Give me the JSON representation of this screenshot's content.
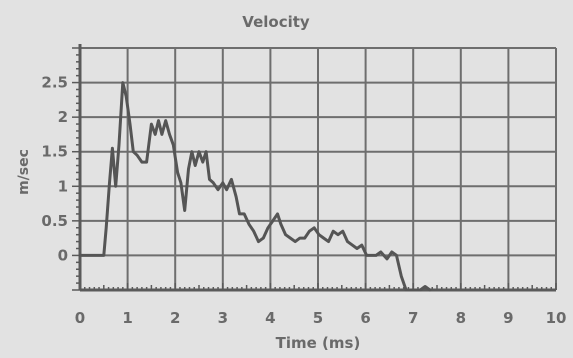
{
  "chart_data": {
    "type": "line",
    "title": "Velocity",
    "xlabel": "Time (ms)",
    "ylabel": "m/sec",
    "xlim": [
      0,
      10
    ],
    "ylim": [
      -0.5,
      3.0
    ],
    "grid": true,
    "x_ticks": [
      0,
      1,
      2,
      3,
      4,
      5,
      6,
      7,
      8,
      9,
      10
    ],
    "x_tick_labels": [
      "0",
      "1",
      "2",
      "3",
      "4",
      "5",
      "6",
      "7",
      "8",
      "9",
      "10"
    ],
    "y_ticks": [
      0,
      0.5,
      1,
      1.5,
      2,
      2.5
    ],
    "y_tick_labels": [
      "0",
      "0.5",
      "1",
      "1.5",
      "2",
      "2.5"
    ],
    "colors": {
      "line": "#555555",
      "grid": "#6e6e6e",
      "axis": "#5a5a5a",
      "text": "#6a6a6a",
      "background": "#e2e2e2"
    },
    "series": [
      {
        "x": [
          0.0,
          0.4,
          0.5,
          0.55,
          0.62,
          0.68,
          0.75,
          0.82,
          0.9,
          0.97,
          1.05,
          1.12,
          1.2,
          1.3,
          1.4,
          1.5,
          1.58,
          1.65,
          1.72,
          1.8,
          1.88,
          1.96,
          2.05,
          2.12,
          2.2,
          2.28,
          2.35,
          2.42,
          2.5,
          2.58,
          2.65,
          2.72,
          2.8,
          2.9,
          3.0,
          3.08,
          3.18,
          3.28,
          3.35,
          3.45,
          3.55,
          3.65,
          3.75,
          3.85,
          3.95,
          4.05,
          4.15,
          4.22,
          4.32,
          4.42,
          4.52,
          4.62,
          4.72,
          4.82,
          4.92,
          5.02,
          5.12,
          5.22,
          5.32,
          5.42,
          5.52,
          5.62,
          5.72,
          5.82,
          5.92,
          6.02,
          6.12,
          6.22,
          6.32,
          6.45,
          6.55,
          6.65,
          6.75,
          6.85,
          6.95,
          7.05,
          7.15,
          7.25,
          7.35
        ],
        "y": [
          0.0,
          0.0,
          0.0,
          0.4,
          1.05,
          1.55,
          1.0,
          1.6,
          2.5,
          2.3,
          1.9,
          1.5,
          1.45,
          1.35,
          1.35,
          1.9,
          1.75,
          1.95,
          1.75,
          1.95,
          1.75,
          1.6,
          1.2,
          1.05,
          0.65,
          1.25,
          1.5,
          1.3,
          1.5,
          1.35,
          1.5,
          1.1,
          1.05,
          0.95,
          1.05,
          0.95,
          1.1,
          0.85,
          0.6,
          0.6,
          0.45,
          0.35,
          0.2,
          0.25,
          0.4,
          0.5,
          0.6,
          0.45,
          0.3,
          0.25,
          0.2,
          0.25,
          0.25,
          0.35,
          0.4,
          0.3,
          0.25,
          0.2,
          0.35,
          0.3,
          0.35,
          0.2,
          0.15,
          0.1,
          0.15,
          0.0,
          0.0,
          0.0,
          0.05,
          -0.05,
          0.05,
          0.0,
          -0.3,
          -0.5,
          -0.5,
          -0.5,
          -0.5,
          -0.45,
          -0.5
        ]
      }
    ]
  }
}
